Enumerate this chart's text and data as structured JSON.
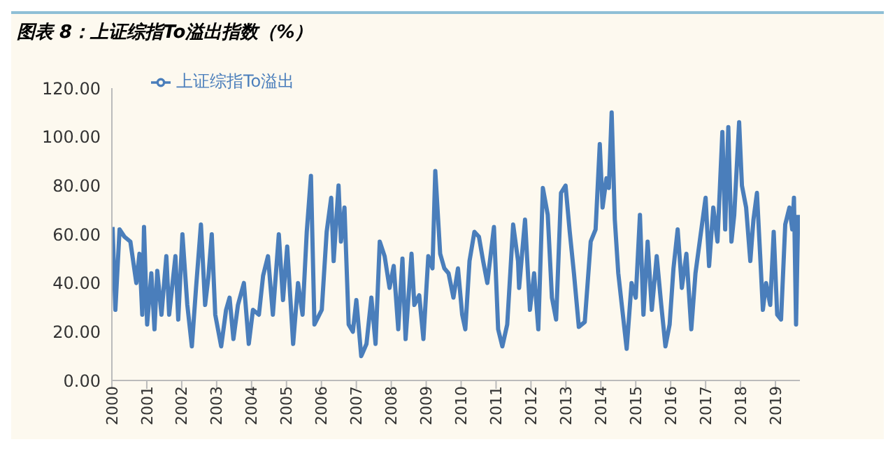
{
  "chart_data": {
    "type": "line",
    "title": "图表 8：上证综指To溢出指数（%）",
    "x": [
      2000.02,
      2000.1,
      2000.22,
      2000.36,
      2000.53,
      2000.7,
      2000.79,
      2000.87,
      2000.92,
      2001.01,
      2001.13,
      2001.22,
      2001.3,
      2001.42,
      2001.56,
      2001.64,
      2001.82,
      2001.9,
      2002.02,
      2002.16,
      2002.29,
      2002.41,
      2002.55,
      2002.67,
      2002.76,
      2002.86,
      2002.96,
      2003.13,
      2003.27,
      2003.37,
      2003.48,
      2003.61,
      2003.78,
      2003.92,
      2004.04,
      2004.21,
      2004.33,
      2004.47,
      2004.61,
      2004.78,
      2004.9,
      2005.02,
      2005.19,
      2005.33,
      2005.46,
      2005.58,
      2005.7,
      2005.8,
      2006.01,
      2006.15,
      2006.28,
      2006.35,
      2006.49,
      2006.56,
      2006.66,
      2006.78,
      2006.9,
      2007.0,
      2007.14,
      2007.29,
      2007.43,
      2007.55,
      2007.67,
      2007.81,
      2007.95,
      2008.07,
      2008.2,
      2008.32,
      2008.41,
      2008.58,
      2008.66,
      2008.8,
      2008.92,
      2009.06,
      2009.18,
      2009.26,
      2009.4,
      2009.52,
      2009.64,
      2009.78,
      2009.91,
      2010.03,
      2010.12,
      2010.24,
      2010.38,
      2010.51,
      2010.63,
      2010.75,
      2010.94,
      2011.06,
      2011.18,
      2011.32,
      2011.49,
      2011.63,
      2011.66,
      2011.83,
      2011.97,
      2012.09,
      2012.21,
      2012.34,
      2012.48,
      2012.6,
      2012.72,
      2012.86,
      2012.99,
      2013.11,
      2013.23,
      2013.37,
      2013.54,
      2013.71,
      2013.85,
      2013.97,
      2014.05,
      2014.16,
      2014.23,
      2014.31,
      2014.4,
      2014.5,
      2014.6,
      2014.74,
      2014.88,
      2015.0,
      2015.12,
      2015.22,
      2015.34,
      2015.46,
      2015.6,
      2015.73,
      2015.85,
      2015.97,
      2016.08,
      2016.2,
      2016.32,
      2016.45,
      2016.59,
      2016.71,
      2016.85,
      2017.0,
      2017.1,
      2017.22,
      2017.34,
      2017.48,
      2017.56,
      2017.65,
      2017.74,
      2017.82,
      2017.96,
      2018.04,
      2018.16,
      2018.28,
      2018.37,
      2018.47,
      2018.56,
      2018.64,
      2018.73,
      2018.85,
      2018.95,
      2019.05,
      2019.16,
      2019.28,
      2019.4,
      2019.48,
      2019.53,
      2019.59,
      2019.65
    ],
    "series": [
      {
        "name": "上证综指To溢出",
        "color": "#4a7ebb",
        "values": [
          63,
          29,
          62,
          59,
          57,
          40,
          52,
          27,
          63,
          23,
          44,
          21,
          45,
          27,
          51,
          27,
          51,
          25,
          60,
          31,
          14,
          38,
          64,
          31,
          42,
          60,
          27,
          14,
          29,
          34,
          17,
          31,
          40,
          15,
          29,
          27,
          43,
          51,
          27,
          60,
          33,
          55,
          15,
          40,
          27,
          61,
          84,
          23,
          29,
          61,
          75,
          49,
          80,
          57,
          71,
          23,
          20,
          33,
          10,
          15,
          34,
          15,
          57,
          51,
          38,
          47,
          21,
          50,
          17,
          52,
          31,
          35,
          17,
          51,
          46,
          86,
          52,
          46,
          44,
          34,
          46,
          27,
          21,
          49,
          61,
          59,
          49,
          40,
          63,
          21,
          14,
          23,
          64,
          49,
          38,
          66,
          29,
          44,
          21,
          79,
          68,
          34,
          25,
          77,
          80,
          61,
          44,
          22,
          24,
          57,
          62,
          97,
          71,
          83,
          79,
          110,
          66,
          44,
          31,
          13,
          40,
          34,
          68,
          27,
          57,
          29,
          51,
          31,
          14,
          23,
          46,
          62,
          38,
          52,
          21,
          44,
          59,
          75,
          47,
          71,
          57,
          102,
          62,
          104,
          57,
          68,
          106,
          80,
          71,
          49,
          66,
          77,
          52,
          29,
          40,
          31,
          61,
          27,
          25,
          64,
          71,
          62,
          75,
          23,
          68
        ]
      }
    ],
    "xlim": [
      2000,
      2019.7
    ],
    "xticks": [
      2000,
      2001,
      2002,
      2003,
      2004,
      2005,
      2006,
      2007,
      2008,
      2009,
      2010,
      2011,
      2012,
      2013,
      2014,
      2015,
      2016,
      2017,
      2018,
      2019
    ],
    "ylim": [
      0,
      120
    ],
    "yticks": [
      {
        "value": 0,
        "label": "0.00"
      },
      {
        "value": 20,
        "label": "20.00"
      },
      {
        "value": 40,
        "label": "40.00"
      },
      {
        "value": 60,
        "label": "60.00"
      },
      {
        "value": 80,
        "label": "80.00"
      },
      {
        "value": 100,
        "label": "100.00"
      },
      {
        "value": 120,
        "label": "120.00"
      }
    ],
    "grid": false,
    "legend": "top left",
    "marker": "none",
    "line_style": "solid"
  }
}
